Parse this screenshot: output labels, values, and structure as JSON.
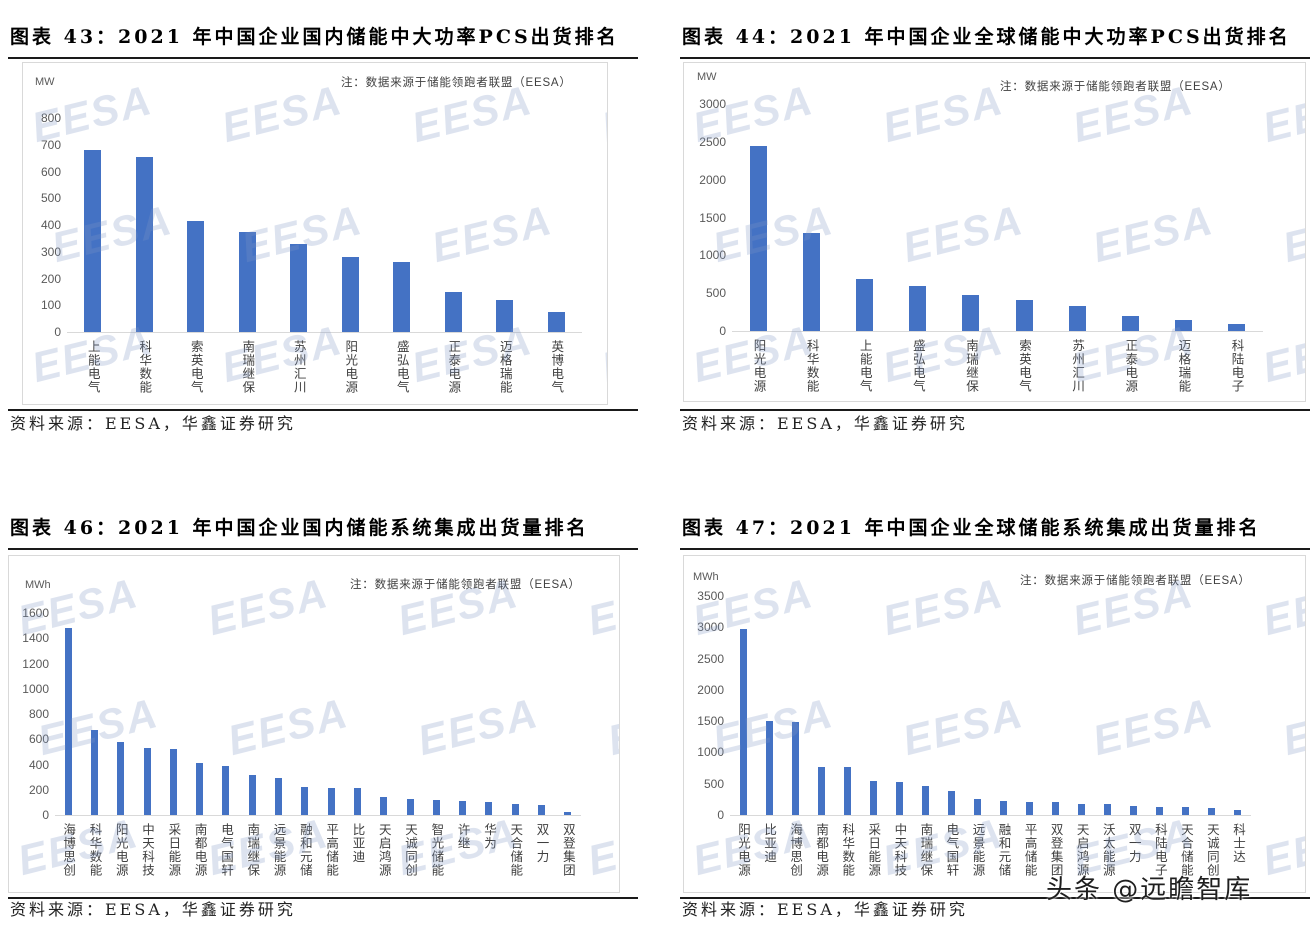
{
  "watermark": "EESA",
  "platform_watermark": "头条 @远瞻智库",
  "colors": {
    "bar": "#4472C4",
    "watermark": "#7f97c4"
  },
  "chart_data": [
    {
      "type": "bar",
      "title": "图表 43：2021 年中国企业国内储能中大功率PCS出货排名",
      "ylabel": "MW",
      "note": "注：数据来源于储能领跑者联盟（EESA）",
      "source": "资料来源：EESA，华鑫证券研究",
      "ylim": [
        0,
        800
      ],
      "yticks": [
        0,
        100,
        200,
        300,
        400,
        500,
        600,
        700,
        800
      ],
      "grid": false,
      "categories": [
        "上能电气",
        "科华数能",
        "索英电气",
        "南瑞继保",
        "苏州汇川",
        "阳光电源",
        "盛弘电气",
        "正泰电源",
        "迈格瑞能",
        "英博电气"
      ],
      "values": [
        680,
        655,
        415,
        375,
        330,
        280,
        260,
        150,
        120,
        75
      ]
    },
    {
      "type": "bar",
      "title": "图表 44：2021 年中国企业全球储能中大功率PCS出货排名",
      "ylabel": "MW",
      "note": "注：数据来源于储能领跑者联盟（EESA）",
      "source": "资料来源：EESA，华鑫证券研究",
      "ylim": [
        0,
        3000
      ],
      "yticks": [
        0,
        500,
        1000,
        1500,
        2000,
        2500,
        3000
      ],
      "grid": false,
      "categories": [
        "阳光电源",
        "科华数能",
        "上能电气",
        "盛弘电气",
        "南瑞继保",
        "索英电气",
        "苏州汇川",
        "正泰电源",
        "迈格瑞能",
        "科陆电子"
      ],
      "values": [
        2450,
        1300,
        690,
        590,
        475,
        410,
        330,
        200,
        145,
        90
      ]
    },
    {
      "type": "bar",
      "title": "图表 46：2021 年中国企业国内储能系统集成出货量排名",
      "ylabel": "MWh",
      "note": "注：数据来源于储能领跑者联盟（EESA）",
      "source": "资料来源：EESA，华鑫证券研究",
      "ylim": [
        0,
        1600
      ],
      "yticks": [
        0,
        200,
        400,
        600,
        800,
        1000,
        1200,
        1400,
        1600
      ],
      "grid": false,
      "categories": [
        "海博思创",
        "科华数能",
        "阳光电源",
        "中天科技",
        "采日能源",
        "南都电源",
        "电气国轩",
        "南瑞继保",
        "远景能源",
        "融和元储",
        "平高储能",
        "比亚迪",
        "天启鸿源",
        "天诚同创",
        "智光储能",
        "许继",
        "华为",
        "天合储能",
        "双一力",
        "双登集团"
      ],
      "values": [
        1480,
        670,
        575,
        530,
        520,
        415,
        385,
        315,
        290,
        220,
        215,
        210,
        145,
        125,
        120,
        110,
        100,
        90,
        80,
        25
      ]
    },
    {
      "type": "bar",
      "title": "图表 47：2021 年中国企业全球储能系统集成出货量排名",
      "ylabel": "MWh",
      "note": "注：数据来源于储能领跑者联盟（EESA）",
      "source": "资料来源：EESA，华鑫证券研究",
      "ylim": [
        0,
        3500
      ],
      "yticks": [
        0,
        500,
        1000,
        1500,
        2000,
        2500,
        3000,
        3500
      ],
      "grid": false,
      "categories": [
        "阳光电源",
        "比亚迪",
        "海博思创",
        "南都电源",
        "科华数能",
        "采日能源",
        "中天科技",
        "南瑞继保",
        "电气国轩",
        "远景能源",
        "融和元储",
        "平高储能",
        "双登集团",
        "天启鸿源",
        "沃太能源",
        "双一力",
        "科陆电子",
        "天合储能",
        "天诚同创",
        "科士达"
      ],
      "values": [
        2980,
        1500,
        1480,
        770,
        760,
        540,
        525,
        460,
        390,
        260,
        230,
        210,
        205,
        180,
        175,
        145,
        130,
        125,
        115,
        85
      ]
    }
  ]
}
